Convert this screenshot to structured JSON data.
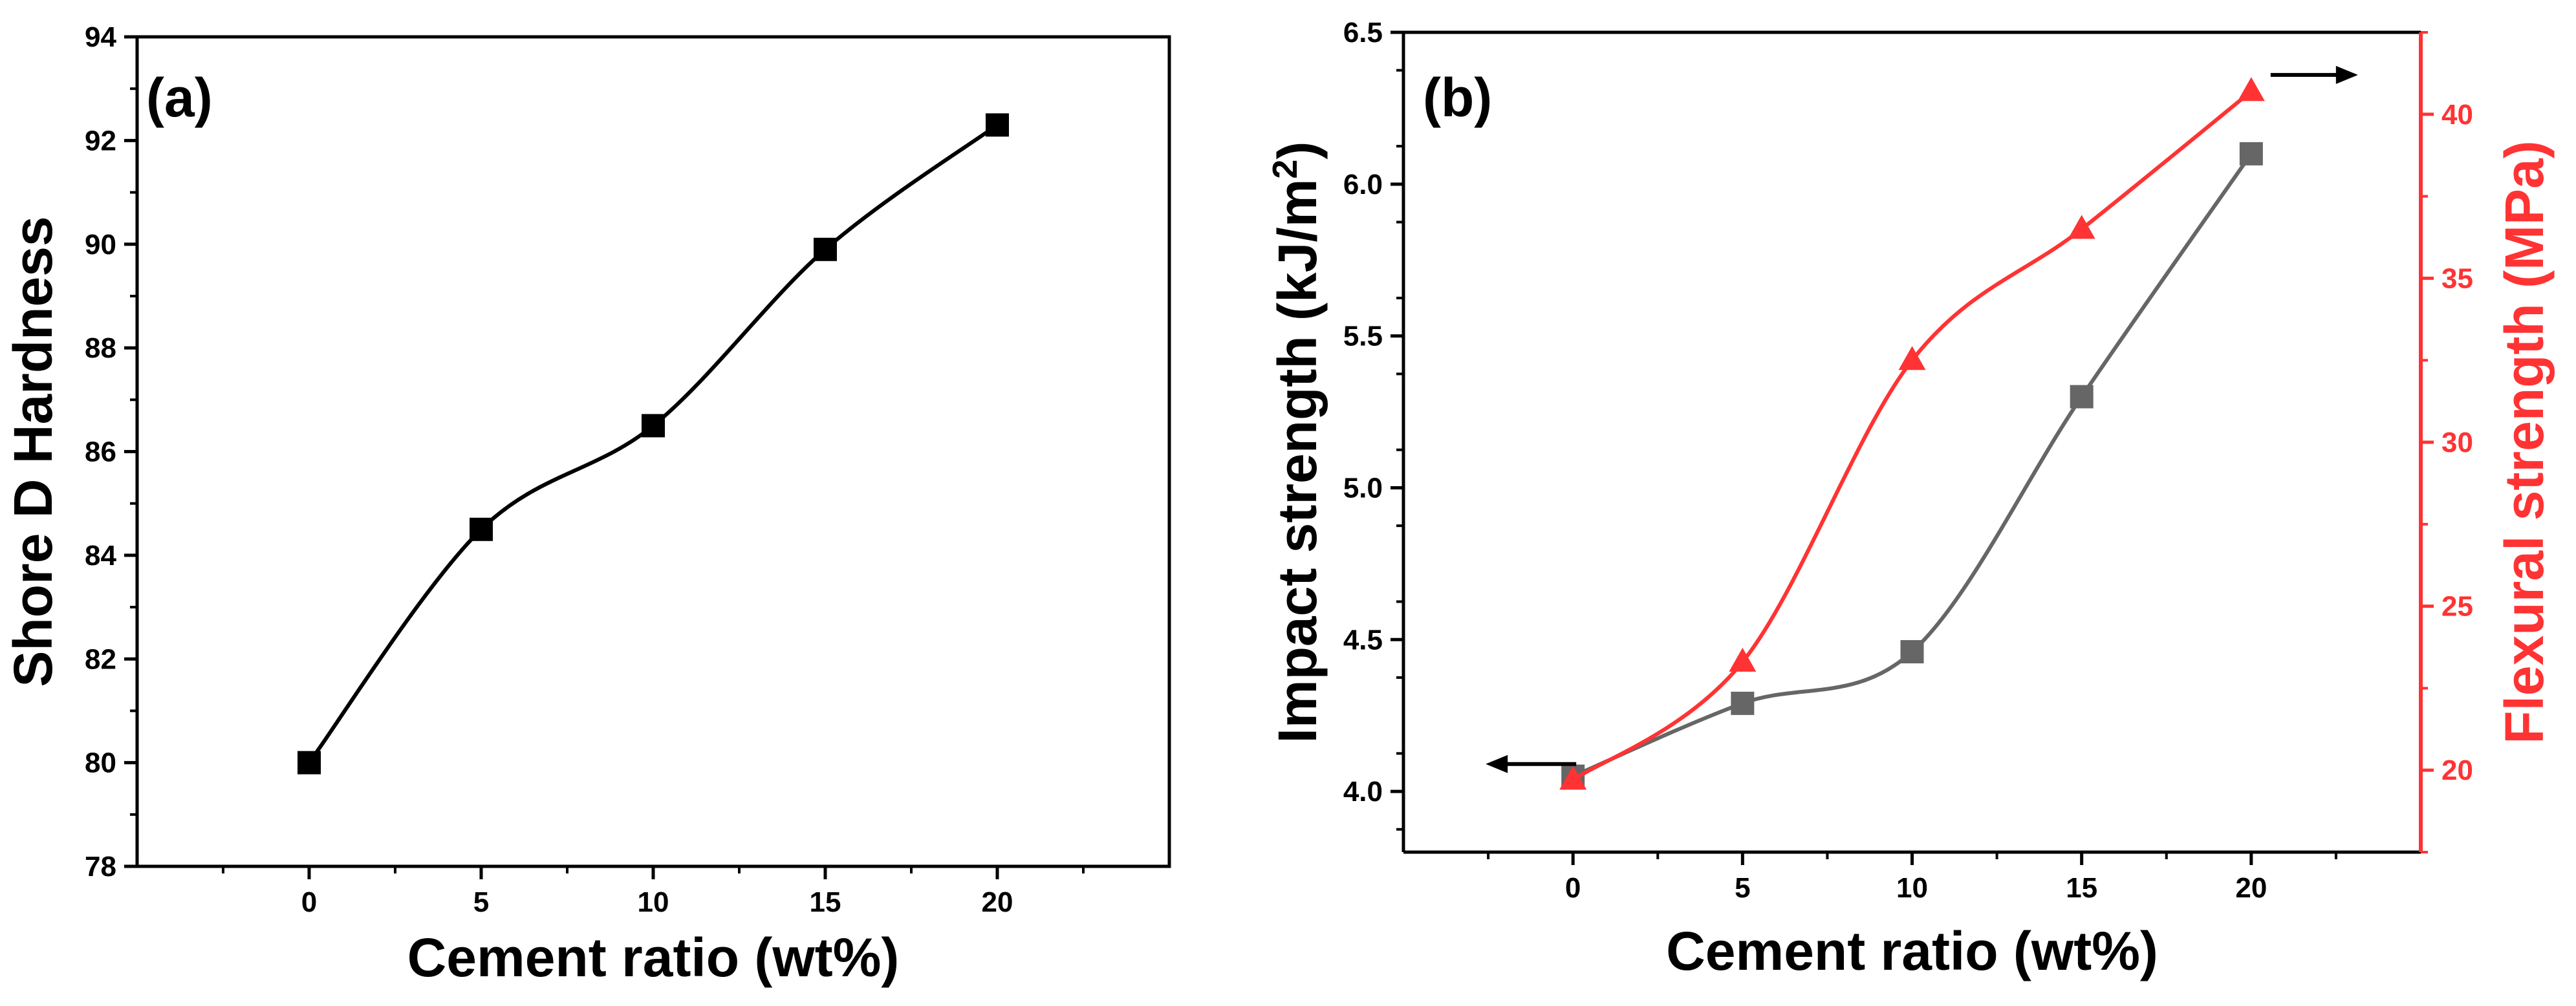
{
  "chart_data": [
    {
      "panel": "a",
      "panel_label": "(a)",
      "type": "line",
      "xlabel": "Cement ratio (wt%)",
      "ylabel": "Shore D Hardness",
      "xlim": [
        -5,
        25
      ],
      "ylim": [
        78,
        94
      ],
      "xticks": [
        0,
        5,
        10,
        15,
        20
      ],
      "yticks": [
        78,
        80,
        82,
        84,
        86,
        88,
        90,
        92,
        94
      ],
      "series": [
        {
          "name": "Shore D Hardness",
          "color": "#000000",
          "marker": "square",
          "x": [
            0,
            5,
            10,
            15,
            20
          ],
          "values": [
            80.0,
            84.5,
            86.5,
            89.9,
            92.3
          ]
        }
      ]
    },
    {
      "panel": "b",
      "panel_label": "(b)",
      "type": "line",
      "xlabel": "Cement ratio (wt%)",
      "ylabel_left": "Impact strength (kJ/m",
      "ylabel_left_sup": "2",
      "ylabel_left_end": ")",
      "ylabel_right": "Flexural strength (MPa)",
      "xlim": [
        -5,
        25
      ],
      "ylim_left": [
        3.8,
        6.5
      ],
      "ylim_right": [
        17.5,
        42.5
      ],
      "xticks": [
        0,
        5,
        10,
        15,
        20
      ],
      "yticks_left": [
        "4.0",
        "4.5",
        "5.0",
        "5.5",
        "6.0",
        "6.5"
      ],
      "yticks_right": [
        "20",
        "25",
        "30",
        "35",
        "40"
      ],
      "series": [
        {
          "name": "Impact strength",
          "axis": "left",
          "color": "#666666",
          "marker": "square",
          "x": [
            0,
            5,
            10,
            15,
            20
          ],
          "values": [
            4.05,
            4.29,
            4.46,
            5.3,
            6.1
          ]
        },
        {
          "name": "Flexural strength",
          "axis": "right",
          "color": "#ff3333",
          "marker": "triangle",
          "x": [
            0,
            5,
            10,
            15,
            20
          ],
          "values": [
            19.7,
            23.3,
            32.5,
            36.5,
            40.7
          ]
        }
      ],
      "annotations": [
        "left-arrow near Impact strength series start",
        "right-arrow near Flexural strength series end"
      ]
    }
  ]
}
